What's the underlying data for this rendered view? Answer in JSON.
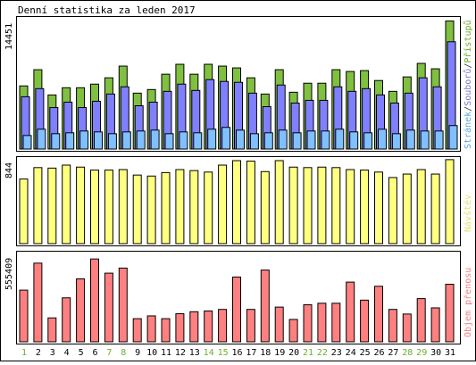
{
  "title": "Denní statistika za leden 2017",
  "panels": {
    "top": {
      "max_label": "14451",
      "legend": [
        {
          "text": "Stránek",
          "color": "#5fa8d8"
        },
        {
          "text": "/",
          "color": "#333333"
        },
        {
          "text": "Souborů",
          "color": "#7c7ccc"
        },
        {
          "text": "/",
          "color": "#333333"
        },
        {
          "text": "Přístupů",
          "color": "#6aae2a"
        }
      ]
    },
    "middle": {
      "max_label": "844",
      "legend": [
        {
          "text": "Návštěv",
          "color": "#e8e070"
        }
      ]
    },
    "bottom": {
      "max_label": "555409",
      "legend": [
        {
          "text": "Objem přenosu",
          "color": "#f08080"
        }
      ]
    }
  },
  "colors": {
    "hits": "#80c040",
    "files": "#8080ff",
    "pages": "#80c0ff",
    "visits": "#ffff80",
    "kbytes": "#ff8080",
    "weekend_label": "#6aae2a",
    "weekday_label": "#000000",
    "border": "#000000"
  },
  "chart_data": [
    {
      "type": "bar",
      "title": "Denní statistika za leden 2017",
      "categories": [
        "1",
        "2",
        "3",
        "4",
        "5",
        "6",
        "7",
        "8",
        "9",
        "10",
        "11",
        "12",
        "13",
        "14",
        "15",
        "16",
        "17",
        "18",
        "19",
        "20",
        "21",
        "22",
        "23",
        "24",
        "25",
        "26",
        "27",
        "28",
        "29",
        "30",
        "31"
      ],
      "weekend_days": [
        "1",
        "7",
        "8",
        "14",
        "15",
        "21",
        "22",
        "28",
        "29"
      ],
      "ylim": [
        0,
        14451
      ],
      "series": [
        {
          "name": "Přístupů",
          "values": [
            7000,
            8800,
            6000,
            6800,
            6800,
            7200,
            7900,
            9200,
            6200,
            6600,
            8300,
            9400,
            8300,
            9400,
            9200,
            9000,
            7900,
            6100,
            8800,
            6300,
            7300,
            7300,
            8800,
            8600,
            8700,
            7600,
            6400,
            8000,
            9500,
            8900,
            14200
          ]
        },
        {
          "name": "Souborů",
          "values": [
            5800,
            6700,
            4600,
            5200,
            4600,
            5300,
            6100,
            6900,
            4800,
            5200,
            6400,
            7200,
            6500,
            7700,
            7500,
            7400,
            6200,
            4700,
            7100,
            5100,
            5400,
            5400,
            6900,
            6400,
            6700,
            6000,
            5100,
            6200,
            7900,
            6900,
            11900
          ]
        },
        {
          "name": "Stránek",
          "values": [
            1500,
            2200,
            1700,
            1800,
            2000,
            1900,
            1700,
            1900,
            2000,
            2100,
            1700,
            1900,
            1800,
            2200,
            2400,
            2100,
            1700,
            1800,
            2100,
            1800,
            2000,
            2000,
            2200,
            1900,
            1800,
            2200,
            1700,
            2100,
            2000,
            2000,
            2600
          ]
        }
      ]
    },
    {
      "type": "bar",
      "categories": [
        "1",
        "2",
        "3",
        "4",
        "5",
        "6",
        "7",
        "8",
        "9",
        "10",
        "11",
        "12",
        "13",
        "14",
        "15",
        "16",
        "17",
        "18",
        "19",
        "20",
        "21",
        "22",
        "23",
        "24",
        "25",
        "26",
        "27",
        "28",
        "29",
        "30",
        "31"
      ],
      "ylim": [
        0,
        844
      ],
      "series": [
        {
          "name": "Návštěv",
          "values": [
            650,
            765,
            760,
            790,
            770,
            740,
            740,
            745,
            690,
            680,
            715,
            745,
            735,
            720,
            790,
            835,
            830,
            725,
            835,
            770,
            765,
            770,
            765,
            745,
            740,
            720,
            665,
            700,
            745,
            700,
            845
          ]
        }
      ]
    },
    {
      "type": "bar",
      "categories": [
        "1",
        "2",
        "3",
        "4",
        "5",
        "6",
        "7",
        "8",
        "9",
        "10",
        "11",
        "12",
        "13",
        "14",
        "15",
        "16",
        "17",
        "18",
        "19",
        "20",
        "21",
        "22",
        "23",
        "24",
        "25",
        "26",
        "27",
        "28",
        "29",
        "30",
        "31"
      ],
      "ylim": [
        0,
        555409
      ],
      "series": [
        {
          "name": "Objem přenosu",
          "values": [
            335000,
            510000,
            155000,
            285000,
            408000,
            537000,
            445000,
            478000,
            150000,
            168000,
            150000,
            182000,
            195000,
            200000,
            210000,
            420000,
            210000,
            465000,
            225000,
            145000,
            240000,
            250000,
            250000,
            387000,
            270000,
            360000,
            210000,
            180000,
            280000,
            220000,
            373000
          ]
        }
      ]
    }
  ]
}
